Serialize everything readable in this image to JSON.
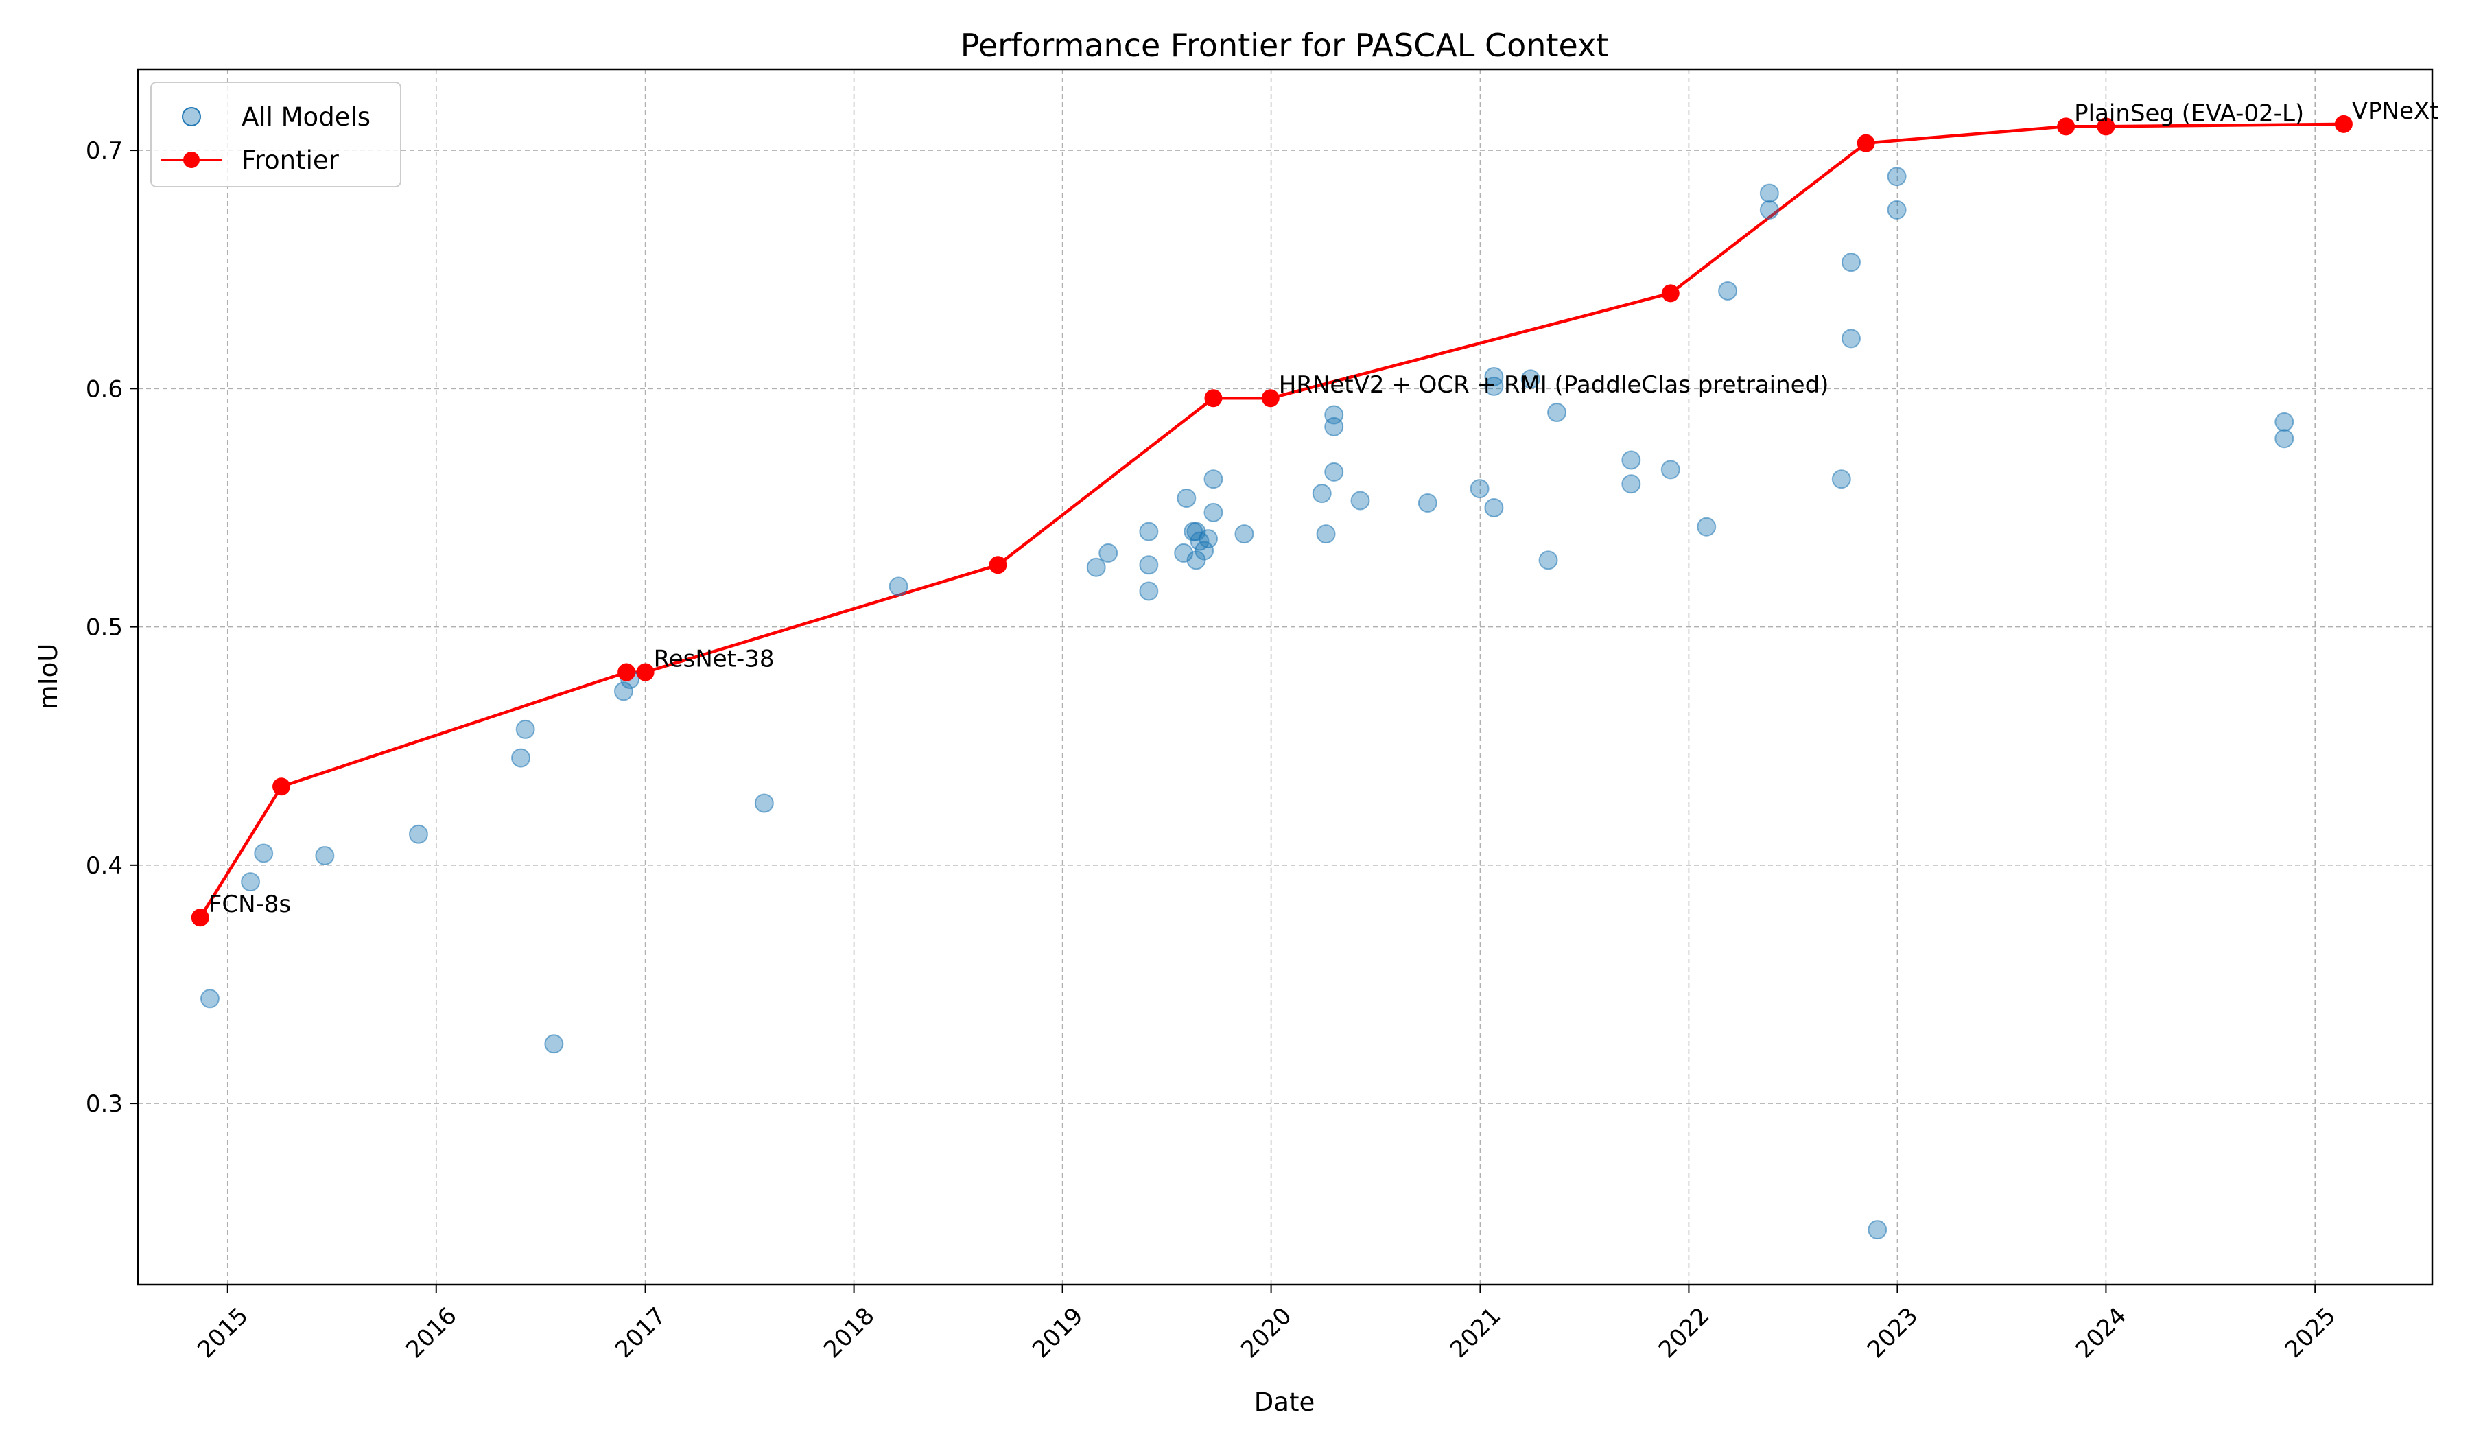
{
  "chart_data": {
    "type": "scatter",
    "title": "Performance Frontier for PASCAL Context",
    "xlabel": "Date",
    "ylabel": "mIoU",
    "xlim": [
      "2014-07-28",
      "2025-07-25"
    ],
    "ylim": [
      0.224,
      0.734
    ],
    "x_ticks": [
      "2015",
      "2016",
      "2017",
      "2018",
      "2019",
      "2020",
      "2021",
      "2022",
      "2023",
      "2024",
      "2025"
    ],
    "y_ticks": [
      "0.3",
      "0.4",
      "0.5",
      "0.6",
      "0.7"
    ],
    "grid": true,
    "legend": {
      "position": "top-left",
      "entries": [
        "All Models",
        "Frontier"
      ]
    },
    "colors": {
      "scatter": "#1f77b4",
      "frontier": "#ff0000",
      "grid": "#b0b0b0"
    },
    "series": [
      {
        "name": "All Models",
        "kind": "scatter",
        "points": [
          {
            "x": "2014-12-01",
            "y": 0.344
          },
          {
            "x": "2015-02-10",
            "y": 0.393
          },
          {
            "x": "2015-03-05",
            "y": 0.405
          },
          {
            "x": "2015-06-20",
            "y": 0.404
          },
          {
            "x": "2015-12-01",
            "y": 0.413
          },
          {
            "x": "2016-05-28",
            "y": 0.445
          },
          {
            "x": "2016-06-05",
            "y": 0.457
          },
          {
            "x": "2016-07-25",
            "y": 0.325
          },
          {
            "x": "2016-11-24",
            "y": 0.473
          },
          {
            "x": "2016-12-05",
            "y": 0.478
          },
          {
            "x": "2017-07-28",
            "y": 0.426
          },
          {
            "x": "2018-03-20",
            "y": 0.517
          },
          {
            "x": "2019-03-01",
            "y": 0.525
          },
          {
            "x": "2019-03-22",
            "y": 0.531
          },
          {
            "x": "2019-06-01",
            "y": 0.515
          },
          {
            "x": "2019-06-01",
            "y": 0.526
          },
          {
            "x": "2019-06-01",
            "y": 0.54
          },
          {
            "x": "2019-08-01",
            "y": 0.531
          },
          {
            "x": "2019-08-06",
            "y": 0.554
          },
          {
            "x": "2019-08-18",
            "y": 0.54
          },
          {
            "x": "2019-08-23",
            "y": 0.54
          },
          {
            "x": "2019-08-23",
            "y": 0.528
          },
          {
            "x": "2019-08-29",
            "y": 0.536
          },
          {
            "x": "2019-09-06",
            "y": 0.532
          },
          {
            "x": "2019-09-13",
            "y": 0.537
          },
          {
            "x": "2019-09-22",
            "y": 0.548
          },
          {
            "x": "2019-09-22",
            "y": 0.562
          },
          {
            "x": "2019-11-15",
            "y": 0.539
          },
          {
            "x": "2020-03-30",
            "y": 0.556
          },
          {
            "x": "2020-04-06",
            "y": 0.539
          },
          {
            "x": "2020-04-20",
            "y": 0.589
          },
          {
            "x": "2020-04-20",
            "y": 0.584
          },
          {
            "x": "2020-04-20",
            "y": 0.565
          },
          {
            "x": "2020-06-05",
            "y": 0.553
          },
          {
            "x": "2020-10-01",
            "y": 0.552
          },
          {
            "x": "2020-12-31",
            "y": 0.558
          },
          {
            "x": "2021-01-25",
            "y": 0.605
          },
          {
            "x": "2021-01-25",
            "y": 0.601
          },
          {
            "x": "2021-01-25",
            "y": 0.55
          },
          {
            "x": "2021-03-30",
            "y": 0.604
          },
          {
            "x": "2021-04-30",
            "y": 0.528
          },
          {
            "x": "2021-05-15",
            "y": 0.59
          },
          {
            "x": "2021-09-22",
            "y": 0.57
          },
          {
            "x": "2021-09-22",
            "y": 0.56
          },
          {
            "x": "2021-11-30",
            "y": 0.566
          },
          {
            "x": "2022-02-01",
            "y": 0.542
          },
          {
            "x": "2022-03-10",
            "y": 0.641
          },
          {
            "x": "2022-05-22",
            "y": 0.682
          },
          {
            "x": "2022-05-22",
            "y": 0.675
          },
          {
            "x": "2022-09-25",
            "y": 0.562
          },
          {
            "x": "2022-10-12",
            "y": 0.653
          },
          {
            "x": "2022-10-12",
            "y": 0.621
          },
          {
            "x": "2022-11-27",
            "y": 0.247
          },
          {
            "x": "2022-12-31",
            "y": 0.689
          },
          {
            "x": "2022-12-31",
            "y": 0.675
          },
          {
            "x": "2024-11-08",
            "y": 0.586
          },
          {
            "x": "2024-11-08",
            "y": 0.579
          }
        ]
      },
      {
        "name": "Frontier",
        "kind": "line",
        "points": [
          {
            "x": "2014-11-14",
            "y": 0.378,
            "label": "FCN-8s"
          },
          {
            "x": "2015-04-05",
            "y": 0.433
          },
          {
            "x": "2016-11-29",
            "y": 0.481
          },
          {
            "x": "2017-01-01",
            "y": 0.481,
            "label": "ResNet-38"
          },
          {
            "x": "2018-09-10",
            "y": 0.526
          },
          {
            "x": "2019-09-22",
            "y": 0.596
          },
          {
            "x": "2019-12-31",
            "y": 0.596,
            "label": "HRNetV2 + OCR + RMI (PaddleClas pretrained)"
          },
          {
            "x": "2021-11-30",
            "y": 0.64
          },
          {
            "x": "2022-11-07",
            "y": 0.703
          },
          {
            "x": "2023-10-23",
            "y": 0.71,
            "label": "PlainSeg (EVA-02-L)"
          },
          {
            "x": "2024-01-01",
            "y": 0.71
          },
          {
            "x": "2025-02-20",
            "y": 0.711,
            "label": "VPNeXt"
          }
        ]
      }
    ]
  }
}
